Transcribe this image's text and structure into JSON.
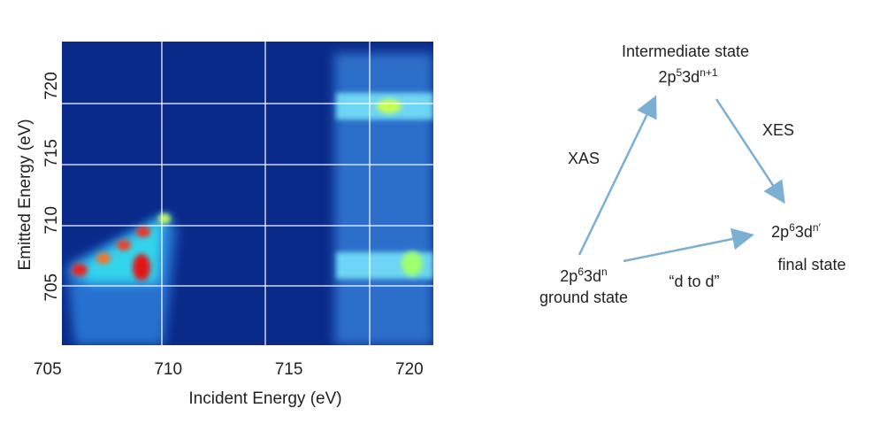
{
  "plot": {
    "xlabel": "Incident Energy (eV)",
    "ylabel": "Emitted Energy (eV)",
    "xlim": [
      705.3,
      720.7
    ],
    "ylim": [
      700.7,
      723.3
    ],
    "xticks": [
      705,
      710,
      715,
      720
    ],
    "yticks": [
      705,
      710,
      715,
      720
    ]
  },
  "diagram": {
    "nodes": [
      {
        "parts": [
          "Intermediate state"
        ]
      },
      {
        "parts": [
          "2p",
          "5",
          "3d",
          "n+1"
        ]
      },
      {
        "parts": [
          "2p",
          "6",
          "3d",
          "n′"
        ]
      },
      {
        "parts": [
          "final state"
        ]
      },
      {
        "parts": [
          "2p",
          "6",
          "3d",
          "n"
        ]
      },
      {
        "parts": [
          "ground state"
        ]
      }
    ],
    "edges": [
      {
        "label": "XAS"
      },
      {
        "label": "XES"
      },
      {
        "label": "“d to d”"
      }
    ]
  }
}
